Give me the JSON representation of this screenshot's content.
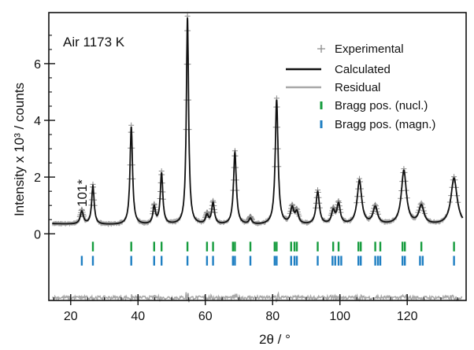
{
  "chart_data": {
    "type": "line",
    "annotation": "Air 1173 K",
    "peak_label": "101*",
    "peak_label_x": 23.3,
    "xlabel": "2θ / °",
    "ylabel": "Intensity x 10³ / counts",
    "xlim": [
      13.5,
      137.5
    ],
    "ylim": [
      -2.35,
      7.8
    ],
    "x_ticks": [
      20,
      40,
      60,
      80,
      100,
      120
    ],
    "y_ticks": [
      0,
      2,
      4,
      6
    ],
    "grid": false,
    "legend_position": "top-right",
    "colors": {
      "experimental": "#8c8c8c",
      "calculated": "#111111",
      "residual": "#a8a8a8",
      "bragg_nuclear": "#169c3e",
      "bragg_magnetic": "#1f7fc2"
    },
    "series": [
      {
        "name": "Experimental",
        "marker": "+",
        "color": "#8c8c8c"
      },
      {
        "name": "Calculated",
        "line": true,
        "color": "#111111"
      },
      {
        "name": "Residual",
        "line": true,
        "color": "#a8a8a8"
      },
      {
        "name": "Bragg pos. (nucl.)",
        "marker": "tick",
        "color": "#169c3e"
      },
      {
        "name": "Bragg pos. (magn.)",
        "marker": "tick",
        "color": "#1f7fc2"
      }
    ],
    "background_counts": 0.3,
    "residual_offset": -2.25,
    "peaks": [
      {
        "x": 23.3,
        "y": 0.75,
        "w": 0.55
      },
      {
        "x": 26.6,
        "y": 1.65,
        "w": 0.45
      },
      {
        "x": 38.0,
        "y": 3.75,
        "w": 0.45
      },
      {
        "x": 44.8,
        "y": 0.9,
        "w": 0.45
      },
      {
        "x": 47.0,
        "y": 2.1,
        "w": 0.45
      },
      {
        "x": 54.7,
        "y": 7.6,
        "w": 0.4
      },
      {
        "x": 60.5,
        "y": 0.6,
        "w": 0.5
      },
      {
        "x": 62.3,
        "y": 1.05,
        "w": 0.5
      },
      {
        "x": 68.8,
        "y": 2.85,
        "w": 0.5
      },
      {
        "x": 73.4,
        "y": 0.5,
        "w": 0.5
      },
      {
        "x": 81.2,
        "y": 4.7,
        "w": 0.5
      },
      {
        "x": 85.8,
        "y": 0.85,
        "w": 0.6
      },
      {
        "x": 87.2,
        "y": 0.7,
        "w": 0.6
      },
      {
        "x": 93.4,
        "y": 1.45,
        "w": 0.6
      },
      {
        "x": 98.0,
        "y": 0.75,
        "w": 0.6
      },
      {
        "x": 99.6,
        "y": 1.0,
        "w": 0.6
      },
      {
        "x": 105.8,
        "y": 1.85,
        "w": 0.8
      },
      {
        "x": 110.5,
        "y": 0.9,
        "w": 0.8
      },
      {
        "x": 119.0,
        "y": 2.2,
        "w": 0.9
      },
      {
        "x": 124.2,
        "y": 0.95,
        "w": 0.9
      },
      {
        "x": 133.9,
        "y": 1.95,
        "w": 1.1
      }
    ],
    "bragg_nuclear": [
      26.6,
      38.0,
      44.8,
      47.0,
      54.7,
      60.5,
      62.3,
      68.2,
      68.8,
      73.4,
      80.6,
      81.2,
      85.5,
      86.5,
      87.2,
      93.4,
      98.0,
      99.6,
      105.5,
      106.2,
      110.5,
      112.0,
      118.6,
      119.3,
      124.2,
      133.9
    ],
    "bragg_magnetic": [
      23.3,
      26.6,
      38.0,
      44.8,
      47.0,
      54.7,
      60.5,
      62.3,
      68.2,
      68.8,
      73.4,
      80.6,
      81.2,
      85.5,
      86.5,
      87.2,
      93.4,
      97.8,
      98.6,
      99.6,
      100.4,
      105.5,
      106.2,
      110.5,
      111.3,
      112.0,
      118.6,
      119.3,
      123.8,
      124.6,
      133.9
    ]
  }
}
